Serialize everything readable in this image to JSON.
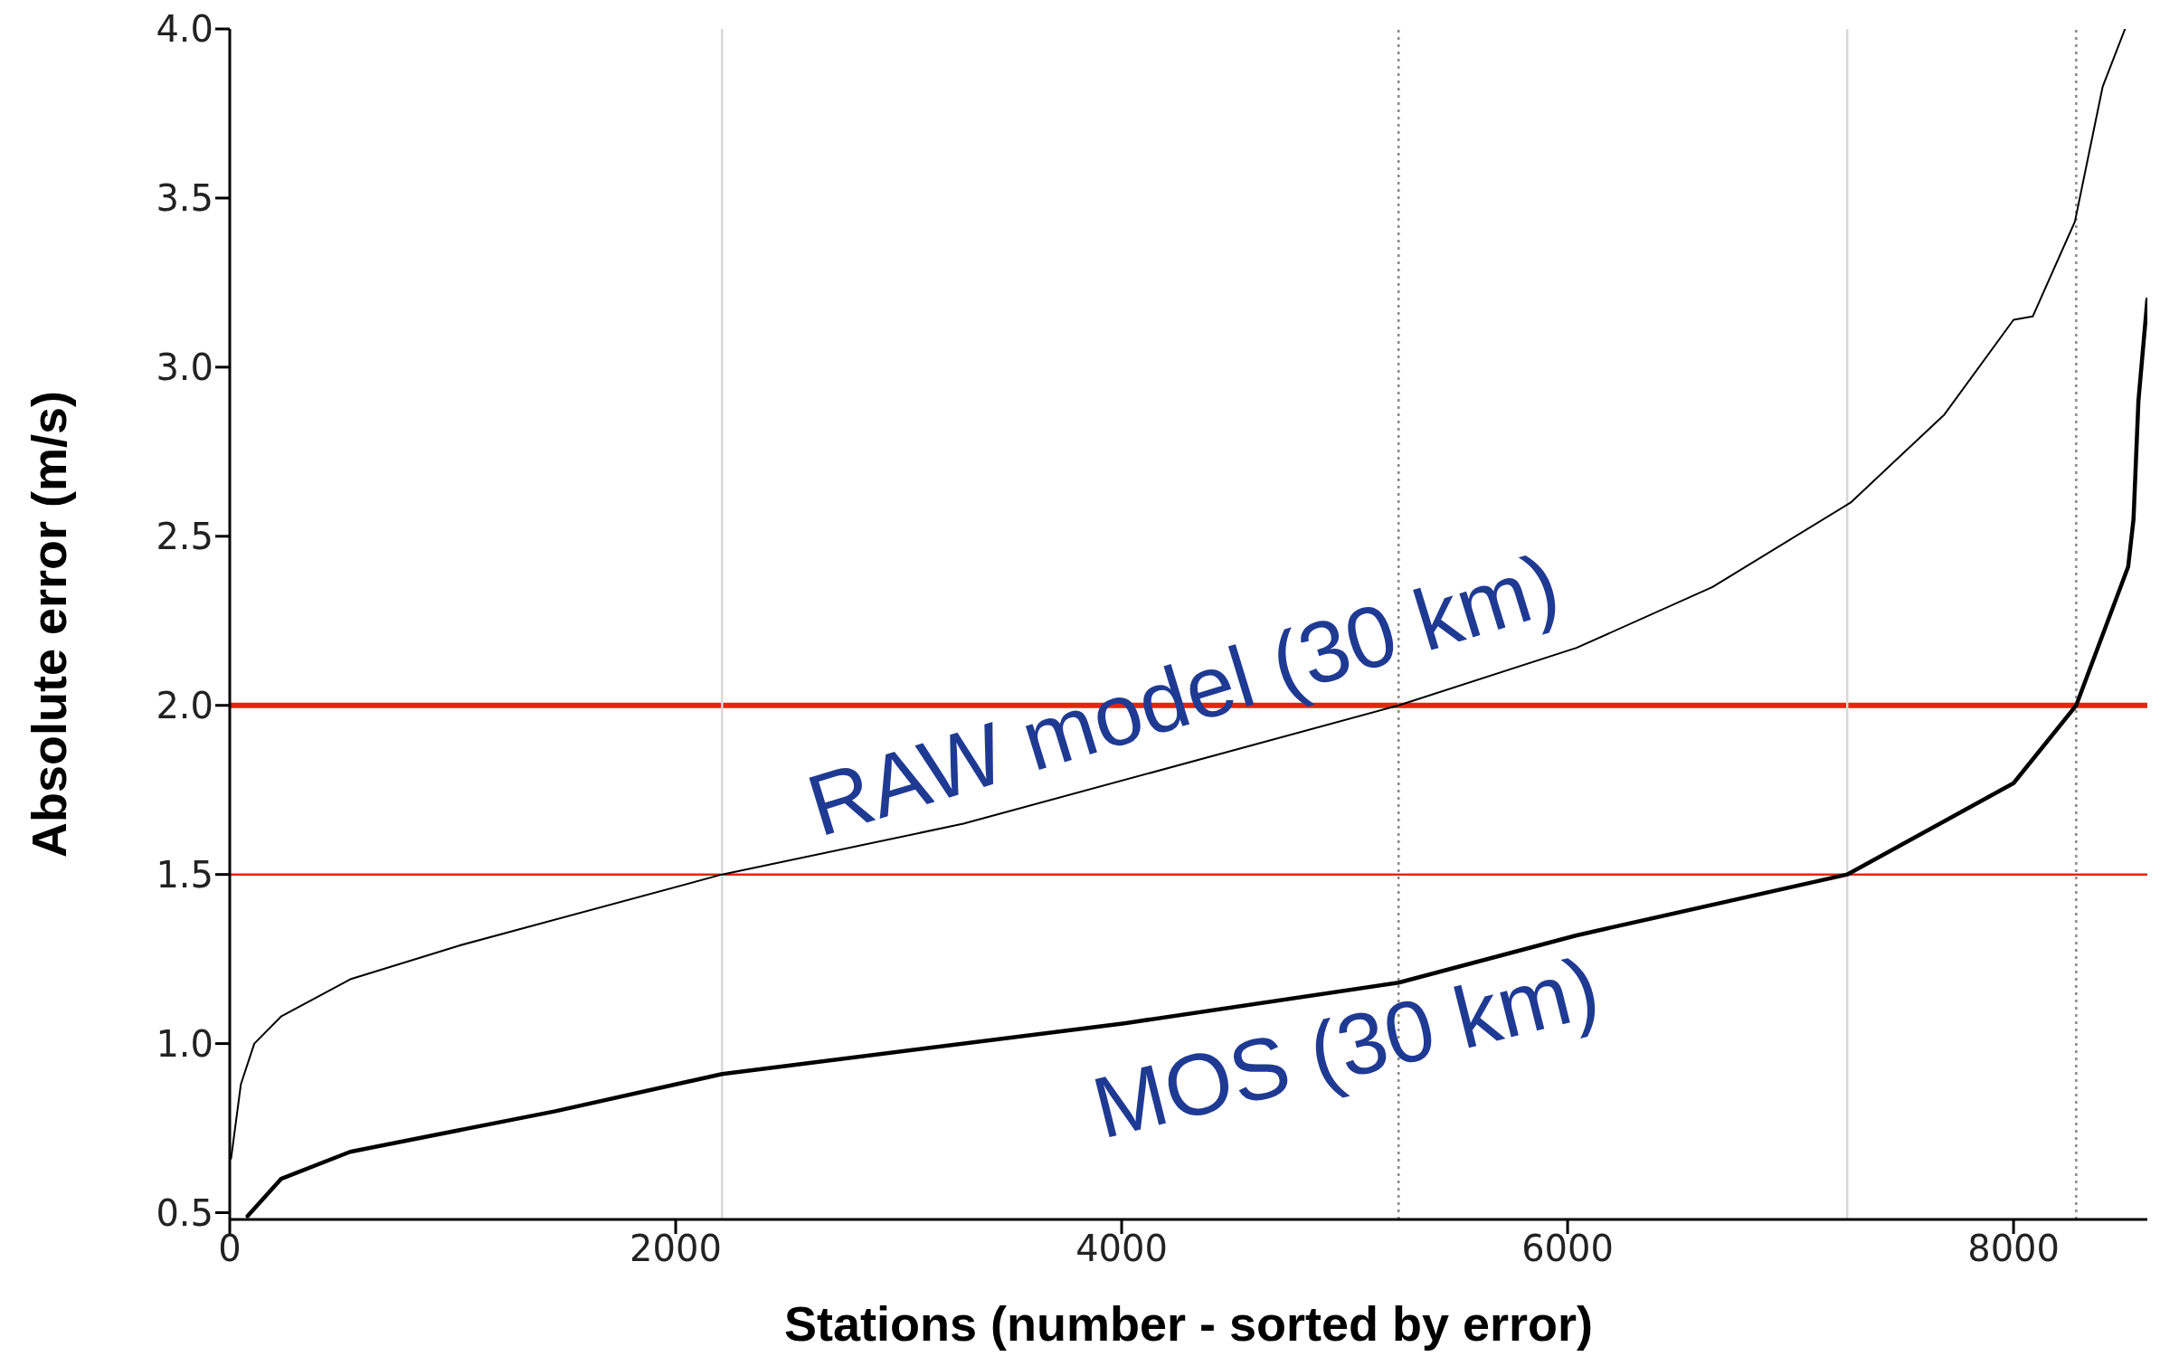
{
  "chart_data": {
    "type": "line",
    "xlabel": "Stations (number - sorted by error)",
    "ylabel": "Absolute error (m/s)",
    "xlim": [
      0,
      8600
    ],
    "xticks": [
      0,
      2000,
      4000,
      6000,
      8000
    ],
    "ylim": [
      0.48,
      4.0
    ],
    "yticks": [
      {
        "value": 0.5,
        "label": "0.5"
      },
      {
        "value": 1.0,
        "label": "1.0"
      },
      {
        "value": 1.5,
        "label": "1.5"
      },
      {
        "value": 2.0,
        "label": "2.0"
      },
      {
        "value": 2.5,
        "label": "2.5"
      },
      {
        "value": 3.0,
        "label": "3.0"
      },
      {
        "value": 3.5,
        "label": "3.5"
      },
      {
        "value": 4.0,
        "label": "4.0"
      }
    ],
    "grid": false,
    "legend": false,
    "marker": "none",
    "line_style": "solid",
    "series": [
      {
        "name": "RAW model (30 km)",
        "color": "#000000",
        "x": [
          6,
          50,
          110,
          230,
          540,
          1030,
          2208,
          3290,
          5242,
          6040,
          6650,
          7270,
          7690,
          8000,
          8086,
          8275,
          8400,
          8500
        ],
        "values": [
          0.66,
          0.88,
          1.0,
          1.08,
          1.19,
          1.29,
          1.5,
          1.65,
          2.0,
          2.17,
          2.35,
          2.6,
          2.86,
          3.14,
          3.15,
          3.43,
          3.83,
          4.0
        ]
      },
      {
        "name": "MOS (30 km)",
        "color": "#000000",
        "x": [
          80,
          230,
          540,
          1460,
          2208,
          4012,
          5242,
          6040,
          7254,
          8000,
          8281,
          8514,
          8538,
          8560,
          8600
        ],
        "values": [
          0.49,
          0.6,
          0.68,
          0.8,
          0.91,
          1.06,
          1.18,
          1.32,
          1.5,
          1.77,
          2.0,
          2.41,
          2.55,
          2.9,
          3.2
        ]
      }
    ],
    "ref_lines": [
      {
        "axis": "y",
        "value": 2.0,
        "color": "#e0280f",
        "line_style": "solid"
      },
      {
        "axis": "y",
        "value": 1.5,
        "color": "#e0280f",
        "line_style": "solid"
      },
      {
        "axis": "x",
        "value": 5242,
        "color": "#888888",
        "line_style": "dotted"
      },
      {
        "axis": "x",
        "value": 8281,
        "color": "#888888",
        "line_style": "dotted"
      },
      {
        "axis": "x",
        "value": 2208,
        "color": "#d8d8d8",
        "line_style": "solid"
      },
      {
        "axis": "x",
        "value": 7254,
        "color": "#d8d8d8",
        "line_style": "solid"
      }
    ]
  }
}
